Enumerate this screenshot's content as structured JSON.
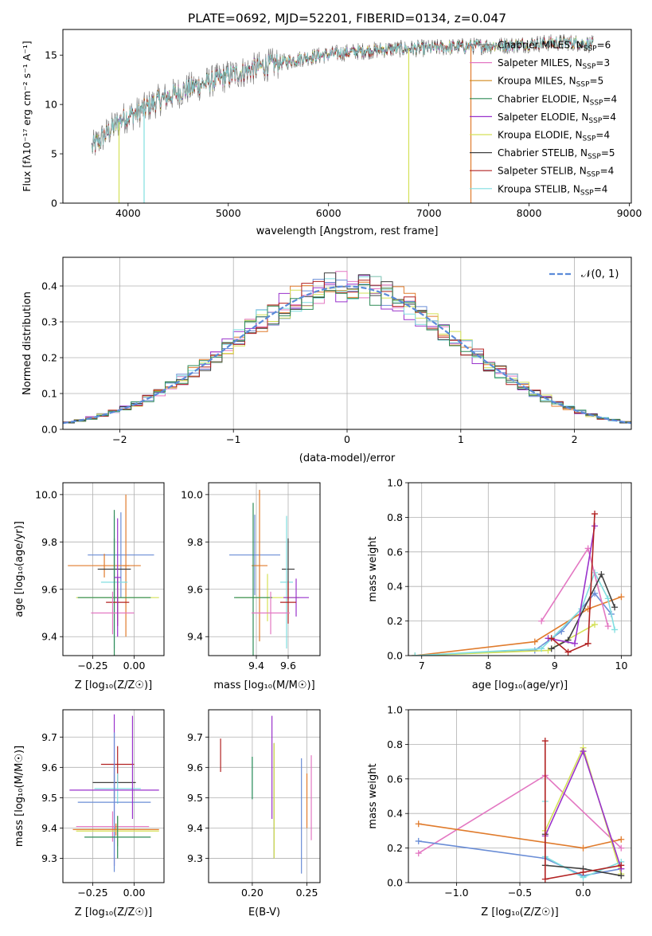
{
  "title": "PLATE=0692, MJD=52201, FIBERID=0134, z=0.047",
  "chart_data": [
    {
      "type": "line",
      "name": "spectrum",
      "xlabel": "wavelength [Angstrom, rest frame]",
      "ylabel": "Flux [fλ10⁻¹⁷ erg cm⁻² s⁻¹ A⁻¹]",
      "xlim": [
        3350,
        9020
      ],
      "ylim": [
        0,
        17.6
      ],
      "xticks": [
        "4000",
        "5000",
        "6000",
        "7000",
        "8000",
        "9000"
      ],
      "yticks": [
        "0",
        "5",
        "10",
        "15"
      ],
      "x_range": [
        3640,
        8640
      ],
      "envelope": [
        {
          "x": 3640,
          "y": 5.6
        },
        {
          "x": 3800,
          "y": 7.2
        },
        {
          "x": 3950,
          "y": 8.6
        },
        {
          "x": 4100,
          "y": 9.2
        },
        {
          "x": 4300,
          "y": 10.4
        },
        {
          "x": 4600,
          "y": 11.6
        },
        {
          "x": 5000,
          "y": 12.9
        },
        {
          "x": 5400,
          "y": 14.0
        },
        {
          "x": 5800,
          "y": 14.8
        },
        {
          "x": 6200,
          "y": 15.3
        },
        {
          "x": 6600,
          "y": 15.6
        },
        {
          "x": 7000,
          "y": 15.7
        },
        {
          "x": 7400,
          "y": 15.9
        },
        {
          "x": 7800,
          "y": 16.0
        },
        {
          "x": 8100,
          "y": 16.2
        },
        {
          "x": 8400,
          "y": 16.3
        },
        {
          "x": 8640,
          "y": 16.1
        }
      ],
      "dips": [
        {
          "x": 3910,
          "y": 0
        },
        {
          "x": 4160,
          "y": 0
        },
        {
          "x": 6800,
          "y": 0
        },
        {
          "x": 7420,
          "y": 0
        }
      ],
      "series": [
        {
          "name": "Chabrier MILES, N",
          "sub": "SSP",
          "tail": "=6",
          "color": "#808080"
        },
        {
          "name": "Salpeter MILES, N",
          "sub": "SSP",
          "tail": "=3",
          "color": "#e377c2"
        },
        {
          "name": "Kroupa MILES, N",
          "sub": "SSP",
          "tail": "=5",
          "color": "#d2891a"
        },
        {
          "name": "Chabrier ELODIE, N",
          "sub": "SSP",
          "tail": "=4",
          "color": "#2e8b57"
        },
        {
          "name": "Salpeter ELODIE, N",
          "sub": "SSP",
          "tail": "=4",
          "color": "#9932cc"
        },
        {
          "name": "Kroupa ELODIE, N",
          "sub": "SSP",
          "tail": "=4",
          "color": "#d4e157"
        },
        {
          "name": "Chabrier STELIB, N",
          "sub": "SSP",
          "tail": "=5",
          "color": "#404040"
        },
        {
          "name": "Salpeter STELIB, N",
          "sub": "SSP",
          "tail": "=4",
          "color": "#b22222"
        },
        {
          "name": "Kroupa STELIB, N",
          "sub": "SSP",
          "tail": "=4",
          "color": "#80dee0"
        }
      ]
    },
    {
      "type": "line",
      "name": "residual-histogram",
      "xlabel": "(data-model)/error",
      "ylabel": "Normed distribution",
      "xlim": [
        -2.5,
        2.5
      ],
      "ylim": [
        0,
        0.48
      ],
      "xticks": [
        "−2",
        "−1",
        "0",
        "1",
        "2"
      ],
      "yticks": [
        "0.0",
        "0.1",
        "0.2",
        "0.3",
        "0.4"
      ],
      "legend": "𝒩(0, 1)",
      "legend_color": "#5b8bd9",
      "bin_width": 0.1,
      "bins_start": -2.5,
      "colors": [
        "#e377c2",
        "#6a8dd6",
        "#e07b2c",
        "#9932cc",
        "#d4e157",
        "#80dee0",
        "#404040",
        "#b22222",
        "#2e8b57"
      ]
    },
    {
      "type": "scatter",
      "name": "age-vs-z",
      "xlabel": "Z [log₁₀(Z/Z☉)]",
      "ylabel": "age  [log₁₀(age/yr)]",
      "xlim": [
        -0.43,
        0.18
      ],
      "ylim": [
        9.32,
        10.05
      ],
      "xticks": [
        -0.25,
        0.0
      ],
      "xtick_labels": [
        "−0.25",
        "0.00"
      ],
      "yticks": [
        9.4,
        9.6,
        9.8,
        10.0
      ],
      "ytick_labels": [
        "9.4",
        "9.6",
        "9.8",
        "10.0"
      ],
      "points": [
        {
          "x": -0.08,
          "y": 9.745,
          "xerr": 0.2,
          "yerr": 0.18,
          "color": "#6a8dd6"
        },
        {
          "x": -0.18,
          "y": 9.7,
          "xerr": 0.22,
          "yerr": 0.05,
          "color": "#e07b2c"
        },
        {
          "x": -0.05,
          "y": 9.7,
          "xerr": 0.02,
          "yerr": 0.3,
          "color": "#e07b2c"
        },
        {
          "x": -0.12,
          "y": 9.685,
          "xerr": 0.1,
          "yerr": 0.13,
          "color": "#404040"
        },
        {
          "x": -0.12,
          "y": 9.63,
          "xerr": 0.08,
          "yerr": 0.28,
          "color": "#80dee0"
        },
        {
          "x": -0.1,
          "y": 9.565,
          "xerr": 0.25,
          "yerr": 0.1,
          "color": "#d4e157"
        },
        {
          "x": -0.12,
          "y": 9.565,
          "xerr": 0.22,
          "yerr": 0.37,
          "color": "#2e8b57"
        },
        {
          "x": -0.1,
          "y": 9.545,
          "xerr": 0.07,
          "yerr": 0.1,
          "color": "#b22222"
        },
        {
          "x": -0.13,
          "y": 9.5,
          "xerr": 0.13,
          "yerr": 0.09,
          "color": "#e377c2"
        },
        {
          "x": -0.1,
          "y": 9.65,
          "xerr": 0.02,
          "yerr": 0.25,
          "color": "#9932cc"
        }
      ]
    },
    {
      "type": "scatter",
      "name": "age-vs-mass",
      "xlabel": "mass [log₁₀(M/M☉)]",
      "ylabel": "",
      "xlim": [
        9.1,
        9.8
      ],
      "ylim": [
        9.32,
        10.05
      ],
      "xticks": [
        9.4,
        9.6
      ],
      "xtick_labels": [
        "9.4",
        "9.6"
      ],
      "yticks": [
        9.4,
        9.6,
        9.8,
        10.0
      ],
      "ytick_labels": [
        "9.4",
        "9.6",
        "9.8",
        "10.0"
      ],
      "points": [
        {
          "x": 9.39,
          "y": 9.745,
          "xerr": 0.16,
          "yerr": 0.17,
          "color": "#6a8dd6"
        },
        {
          "x": 9.42,
          "y": 9.7,
          "xerr": 0.05,
          "yerr": 0.32,
          "color": "#e07b2c"
        },
        {
          "x": 9.6,
          "y": 9.685,
          "xerr": 0.04,
          "yerr": 0.13,
          "color": "#404040"
        },
        {
          "x": 9.59,
          "y": 9.63,
          "xerr": 0.04,
          "yerr": 0.28,
          "color": "#80dee0"
        },
        {
          "x": 9.47,
          "y": 9.565,
          "xerr": 0.2,
          "yerr": 0.1,
          "color": "#d4e157"
        },
        {
          "x": 9.38,
          "y": 9.565,
          "xerr": 0.12,
          "yerr": 0.4,
          "color": "#2e8b57"
        },
        {
          "x": 9.65,
          "y": 9.565,
          "xerr": 0.08,
          "yerr": 0.08,
          "color": "#9932cc"
        },
        {
          "x": 9.6,
          "y": 9.545,
          "xerr": 0.05,
          "yerr": 0.09,
          "color": "#b22222"
        },
        {
          "x": 9.49,
          "y": 9.5,
          "xerr": 0.12,
          "yerr": 0.09,
          "color": "#e377c2"
        }
      ]
    },
    {
      "type": "line",
      "name": "mass-weight-vs-age",
      "xlabel": "age  [log₁₀(age/yr)]",
      "ylabel": "mass weight",
      "xlim": [
        6.8,
        10.15
      ],
      "ylim": [
        0,
        1.0
      ],
      "xticks": [
        7,
        8,
        9,
        10
      ],
      "xtick_labels": [
        "7",
        "8",
        "9",
        "10"
      ],
      "yticks": [
        0.0,
        0.2,
        0.4,
        0.6,
        0.8,
        1.0
      ],
      "ytick_labels": [
        "0.0",
        "0.2",
        "0.4",
        "0.6",
        "0.8",
        "1.0"
      ],
      "series": [
        {
          "color": "#6a8dd6",
          "x": [
            6.9,
            8.7,
            9.1,
            9.6,
            9.85
          ],
          "y": [
            0.0,
            0.03,
            0.14,
            0.36,
            0.24
          ]
        },
        {
          "color": "#e07b2c",
          "x": [
            6.9,
            8.7,
            9.5,
            10.0
          ],
          "y": [
            0.0,
            0.08,
            0.27,
            0.34
          ]
        },
        {
          "color": "#d4e157",
          "x": [
            6.9,
            8.9,
            9.6
          ],
          "y": [
            0.0,
            0.03,
            0.18
          ]
        },
        {
          "color": "#80dee0",
          "x": [
            6.9,
            8.8,
            9.4,
            9.6,
            9.8,
            9.9
          ],
          "y": [
            0.0,
            0.04,
            0.27,
            0.48,
            0.33,
            0.15
          ]
        },
        {
          "color": "#e377c2",
          "x": [
            8.8,
            9.5,
            9.8
          ],
          "y": [
            0.2,
            0.62,
            0.17
          ]
        },
        {
          "color": "#404040",
          "x": [
            8.95,
            9.2,
            9.7,
            9.9
          ],
          "y": [
            0.04,
            0.09,
            0.47,
            0.28
          ]
        },
        {
          "color": "#9932cc",
          "x": [
            8.9,
            9.3,
            9.6
          ],
          "y": [
            0.1,
            0.07,
            0.75
          ]
        },
        {
          "color": "#b22222",
          "x": [
            8.95,
            9.2,
            9.5,
            9.6
          ],
          "y": [
            0.1,
            0.02,
            0.07,
            0.82
          ]
        }
      ]
    },
    {
      "type": "scatter",
      "name": "mass-vs-z",
      "xlabel": "Z [log₁₀(Z/Z☉)]",
      "ylabel": "mass [log₁₀(M/M☉)]",
      "xlim": [
        -0.43,
        0.18
      ],
      "ylim": [
        9.22,
        9.79
      ],
      "xticks": [
        -0.25,
        0.0
      ],
      "xtick_labels": [
        "−0.25",
        "0.00"
      ],
      "yticks": [
        9.3,
        9.4,
        9.5,
        9.6,
        9.7
      ],
      "ytick_labels": [
        "9.3",
        "9.4",
        "9.5",
        "9.6",
        "9.7"
      ],
      "points": [
        {
          "x": -0.1,
          "y": 9.61,
          "xerr": 0.1,
          "yerr": 0.06,
          "color": "#b22222"
        },
        {
          "x": -0.12,
          "y": 9.55,
          "xerr": 0.13,
          "yerr": 0.05,
          "color": "#404040"
        },
        {
          "x": -0.1,
          "y": 9.53,
          "xerr": 0.14,
          "yerr": 0.05,
          "color": "#80dee0"
        },
        {
          "x": -0.12,
          "y": 9.525,
          "xerr": 0.27,
          "yerr": 0.25,
          "color": "#9932cc"
        },
        {
          "x": -0.12,
          "y": 9.485,
          "xerr": 0.22,
          "yerr": 0.23,
          "color": "#6a8dd6"
        },
        {
          "x": -0.13,
          "y": 9.405,
          "xerr": 0.22,
          "yerr": 0.05,
          "color": "#e377c2"
        },
        {
          "x": -0.11,
          "y": 9.395,
          "xerr": 0.26,
          "yerr": 0.02,
          "color": "#e07b2c"
        },
        {
          "x": -0.1,
          "y": 9.39,
          "xerr": 0.25,
          "yerr": 0.05,
          "color": "#d4e157"
        },
        {
          "x": -0.1,
          "y": 9.37,
          "xerr": 0.2,
          "yerr": 0.07,
          "color": "#2e8b57"
        },
        {
          "x": -0.01,
          "y": 9.6,
          "xerr": 0.0,
          "yerr": 0.17,
          "color": "#9932cc"
        }
      ]
    },
    {
      "type": "scatter",
      "name": "mass-vs-ebv",
      "xlabel": "E(B-V)",
      "ylabel": "",
      "xlim": [
        0.16,
        0.262
      ],
      "ylim": [
        9.22,
        9.79
      ],
      "xticks": [
        0.2,
        0.25
      ],
      "xtick_labels": [
        "0.20",
        "0.25"
      ],
      "yticks": [
        9.3,
        9.4,
        9.5,
        9.6,
        9.7
      ],
      "ytick_labels": [
        "9.3",
        "9.4",
        "9.5",
        "9.6",
        "9.7"
      ],
      "points": [
        {
          "x": 0.171,
          "y": 9.64,
          "xerr": 0,
          "yerr": 0.055,
          "color": "#b22222"
        },
        {
          "x": 0.2,
          "y": 9.565,
          "xerr": 0,
          "yerr": 0.07,
          "color": "#80dee0"
        },
        {
          "x": 0.2,
          "y": 9.565,
          "xerr": 0,
          "yerr": 0.07,
          "color": "#2e8b57"
        },
        {
          "x": 0.218,
          "y": 9.6,
          "xerr": 0,
          "yerr": 0.17,
          "color": "#9932cc"
        },
        {
          "x": 0.22,
          "y": 9.49,
          "xerr": 0,
          "yerr": 0.19,
          "color": "#404040"
        },
        {
          "x": 0.22,
          "y": 9.49,
          "xerr": 0,
          "yerr": 0.19,
          "color": "#d4e157"
        },
        {
          "x": 0.245,
          "y": 9.44,
          "xerr": 0,
          "yerr": 0.19,
          "color": "#6a8dd6"
        },
        {
          "x": 0.25,
          "y": 9.49,
          "xerr": 0,
          "yerr": 0.09,
          "color": "#e07b2c"
        },
        {
          "x": 0.254,
          "y": 9.5,
          "xerr": 0,
          "yerr": 0.14,
          "color": "#e377c2"
        }
      ]
    },
    {
      "type": "line",
      "name": "mass-weight-vs-z",
      "xlabel": "Z [log₁₀(Z/Z☉)]",
      "ylabel": "mass weight",
      "xlim": [
        -1.38,
        0.38
      ],
      "ylim": [
        0,
        1.0
      ],
      "xticks": [
        -1.0,
        -0.5,
        0.0
      ],
      "xtick_labels": [
        "−1.0",
        "−0.5",
        "0.0"
      ],
      "yticks": [
        0.0,
        0.2,
        0.4,
        0.6,
        0.8,
        1.0
      ],
      "ytick_labels": [
        "0.0",
        "0.2",
        "0.4",
        "0.6",
        "0.8",
        "1.0"
      ],
      "series": [
        {
          "color": "#e377c2",
          "x": [
            -1.3,
            -0.3,
            0.3
          ],
          "y": [
            0.17,
            0.62,
            0.2
          ]
        },
        {
          "color": "#e07b2c",
          "x": [
            -1.3,
            0.0,
            0.3
          ],
          "y": [
            0.34,
            0.2,
            0.25
          ]
        },
        {
          "color": "#6a8dd6",
          "x": [
            -1.3,
            -0.3,
            0.0,
            0.3
          ],
          "y": [
            0.24,
            0.14,
            0.04,
            0.08
          ]
        },
        {
          "color": "#d4e157",
          "x": [
            -0.3,
            0.0,
            0.3
          ],
          "y": [
            0.3,
            0.78,
            0.05
          ]
        },
        {
          "color": "#80dee0",
          "x": [
            -0.3,
            -0.3,
            0.0,
            0.3
          ],
          "y": [
            0.47,
            0.15,
            0.03,
            0.12
          ]
        },
        {
          "color": "#9932cc",
          "x": [
            -0.3,
            0.0,
            0.3
          ],
          "y": [
            0.27,
            0.76,
            0.08
          ]
        },
        {
          "color": "#404040",
          "x": [
            -0.3,
            -0.3,
            0.0,
            0.3
          ],
          "y": [
            0.28,
            0.1,
            0.08,
            0.04
          ]
        },
        {
          "color": "#b22222",
          "x": [
            -0.3,
            -0.3,
            0.0,
            0.3
          ],
          "y": [
            0.82,
            0.02,
            0.06,
            0.1
          ]
        }
      ]
    }
  ]
}
